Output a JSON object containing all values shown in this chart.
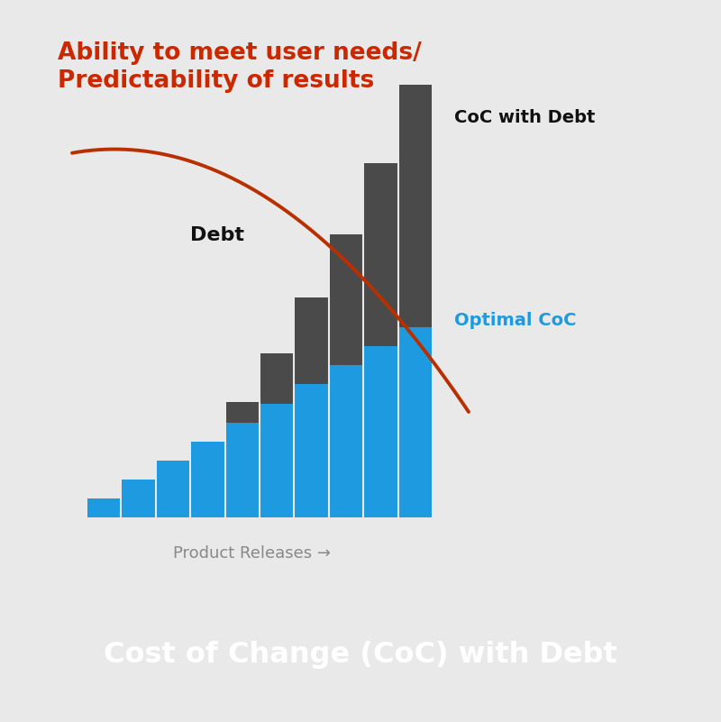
{
  "title": "Cost of Change (CoC) with Debt",
  "title_color": "#ffffff",
  "title_bg_color": "#676767",
  "chart_bg_color": "#e9e9e9",
  "outer_bg_color": "#e9e9e9",
  "bar_dark_color": "#4a4a4a",
  "bar_blue_color": "#1e9be0",
  "curve_color": "#b83000",
  "n_bars": 10,
  "xlabel": "Product Releases →",
  "xlabel_color": "#888888",
  "label_debt": "Debt",
  "label_coc_debt": "CoC with Debt",
  "label_optimal": "Optimal CoC",
  "label_ability": "Ability to meet user needs/\nPredictability of results",
  "label_ability_color": "#cc2800",
  "label_debt_color": "#111111",
  "label_coc_debt_color": "#111111",
  "label_optimal_color": "#1e9be0",
  "title_fontsize": 23,
  "ability_fontsize": 19,
  "label_fontsize": 13,
  "xlabel_fontsize": 13
}
